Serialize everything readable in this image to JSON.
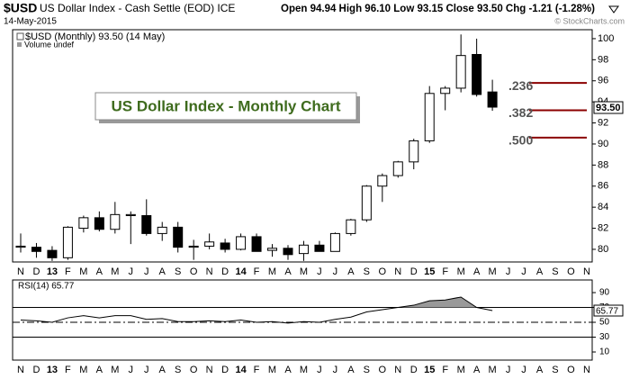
{
  "header": {
    "symbol": "$USD",
    "name": "US Dollar Index - Cash Settle (EOD) ICE",
    "date": "14-May-2015",
    "quote": "Open 94.94  High 96.10  Low 93.15  Close 93.50  Chg -1.21 (-1.28%)",
    "watermark": "© StockCharts.com"
  },
  "chart_data": [
    {
      "type": "candlestick",
      "title": "US Dollar Index - Monthly Chart",
      "legend": "$USD (Monthly) 93.50 (14 May)",
      "volume_note": "Volume undef",
      "price_tag": "93.50",
      "categories": [
        "N",
        "D",
        "13",
        "F",
        "M",
        "A",
        "M",
        "J",
        "J",
        "A",
        "S",
        "O",
        "N",
        "D",
        "14",
        "F",
        "M",
        "A",
        "M",
        "J",
        "J",
        "A",
        "S",
        "O",
        "N",
        "D",
        "15",
        "F",
        "M",
        "A",
        "M",
        "J",
        "J",
        "A",
        "S",
        "O",
        "N"
      ],
      "open": [
        80.2,
        80.2,
        79.9,
        79.2,
        82.0,
        83.0,
        81.9,
        83.2,
        83.2,
        81.5,
        82.1,
        80.2,
        80.3,
        80.6,
        80.0,
        81.2,
        79.9,
        80.1,
        79.6,
        80.4,
        79.8,
        81.5,
        82.8,
        86.0,
        87.0,
        88.3,
        90.3,
        94.8,
        95.3,
        98.5,
        94.94,
        null,
        null,
        null,
        null,
        null,
        null
      ],
      "high": [
        81.5,
        80.6,
        80.3,
        82.2,
        83.2,
        83.6,
        84.5,
        83.6,
        84.75,
        82.6,
        82.6,
        80.9,
        81.5,
        81.0,
        81.5,
        81.5,
        80.5,
        80.4,
        80.8,
        80.8,
        81.6,
        82.9,
        86.1,
        87.2,
        88.4,
        90.5,
        95.5,
        95.5,
        100.4,
        100.0,
        96.1,
        null,
        null,
        null,
        null,
        null,
        null
      ],
      "low": [
        79.7,
        79.2,
        78.9,
        79.0,
        81.6,
        81.7,
        81.5,
        80.5,
        81.3,
        80.8,
        79.7,
        79.0,
        80.0,
        79.7,
        79.9,
        79.8,
        79.3,
        79.0,
        78.9,
        79.9,
        79.8,
        81.3,
        82.6,
        84.5,
        86.8,
        87.6,
        90.1,
        93.2,
        94.9,
        94.5,
        93.15,
        null,
        null,
        null,
        null,
        null,
        null
      ],
      "close": [
        80.3,
        79.8,
        79.2,
        82.1,
        83.0,
        81.9,
        83.3,
        83.3,
        81.5,
        82.1,
        80.2,
        80.3,
        80.7,
        80.0,
        81.2,
        79.8,
        80.1,
        79.5,
        80.4,
        79.8,
        81.5,
        82.8,
        86.0,
        87.0,
        88.3,
        90.3,
        94.8,
        95.3,
        98.4,
        94.7,
        93.5,
        null,
        null,
        null,
        null,
        null,
        null
      ],
      "up_color": "#ffffff",
      "down_color": "#000000",
      "ylim": [
        78.8,
        100.85
      ],
      "yticks": [
        80,
        82,
        84,
        86,
        88,
        90,
        92,
        94,
        96,
        98,
        100
      ],
      "fib_levels": [
        {
          "label": ".236",
          "value": 95.8
        },
        {
          "label": ".382",
          "value": 93.2
        },
        {
          "label": ".500",
          "value": 90.6
        }
      ],
      "fib_color": "#8b0000"
    },
    {
      "type": "line",
      "label": "RSI(14) 65.77",
      "value_tag": "65.77",
      "categories": [
        "N",
        "D",
        "13",
        "F",
        "M",
        "A",
        "M",
        "J",
        "J",
        "A",
        "S",
        "O",
        "N",
        "D",
        "14",
        "F",
        "M",
        "A",
        "M",
        "J",
        "J",
        "A",
        "S",
        "O",
        "N",
        "D",
        "15",
        "F",
        "M",
        "A",
        "M",
        "J",
        "J",
        "A",
        "S",
        "O",
        "N"
      ],
      "series": [
        {
          "name": "RSI(14)",
          "color": "#000000",
          "values": [
            53,
            52,
            50,
            56,
            59,
            56,
            59,
            59,
            54,
            55,
            51,
            51,
            52,
            51,
            53,
            50,
            51,
            49,
            51,
            50,
            54,
            57,
            64,
            67,
            70,
            73,
            79,
            80,
            84,
            70,
            65.77,
            null,
            null,
            null,
            null,
            null,
            null
          ]
        }
      ],
      "fill_color": "#999999",
      "ylim": [
        -0.9,
        107
      ],
      "yticks": [
        10,
        30,
        50,
        70,
        90
      ],
      "levels": [
        {
          "value": 70,
          "style": "solid"
        },
        {
          "value": 50,
          "style": "dashdot"
        },
        {
          "value": 30,
          "style": "solid"
        }
      ]
    }
  ]
}
